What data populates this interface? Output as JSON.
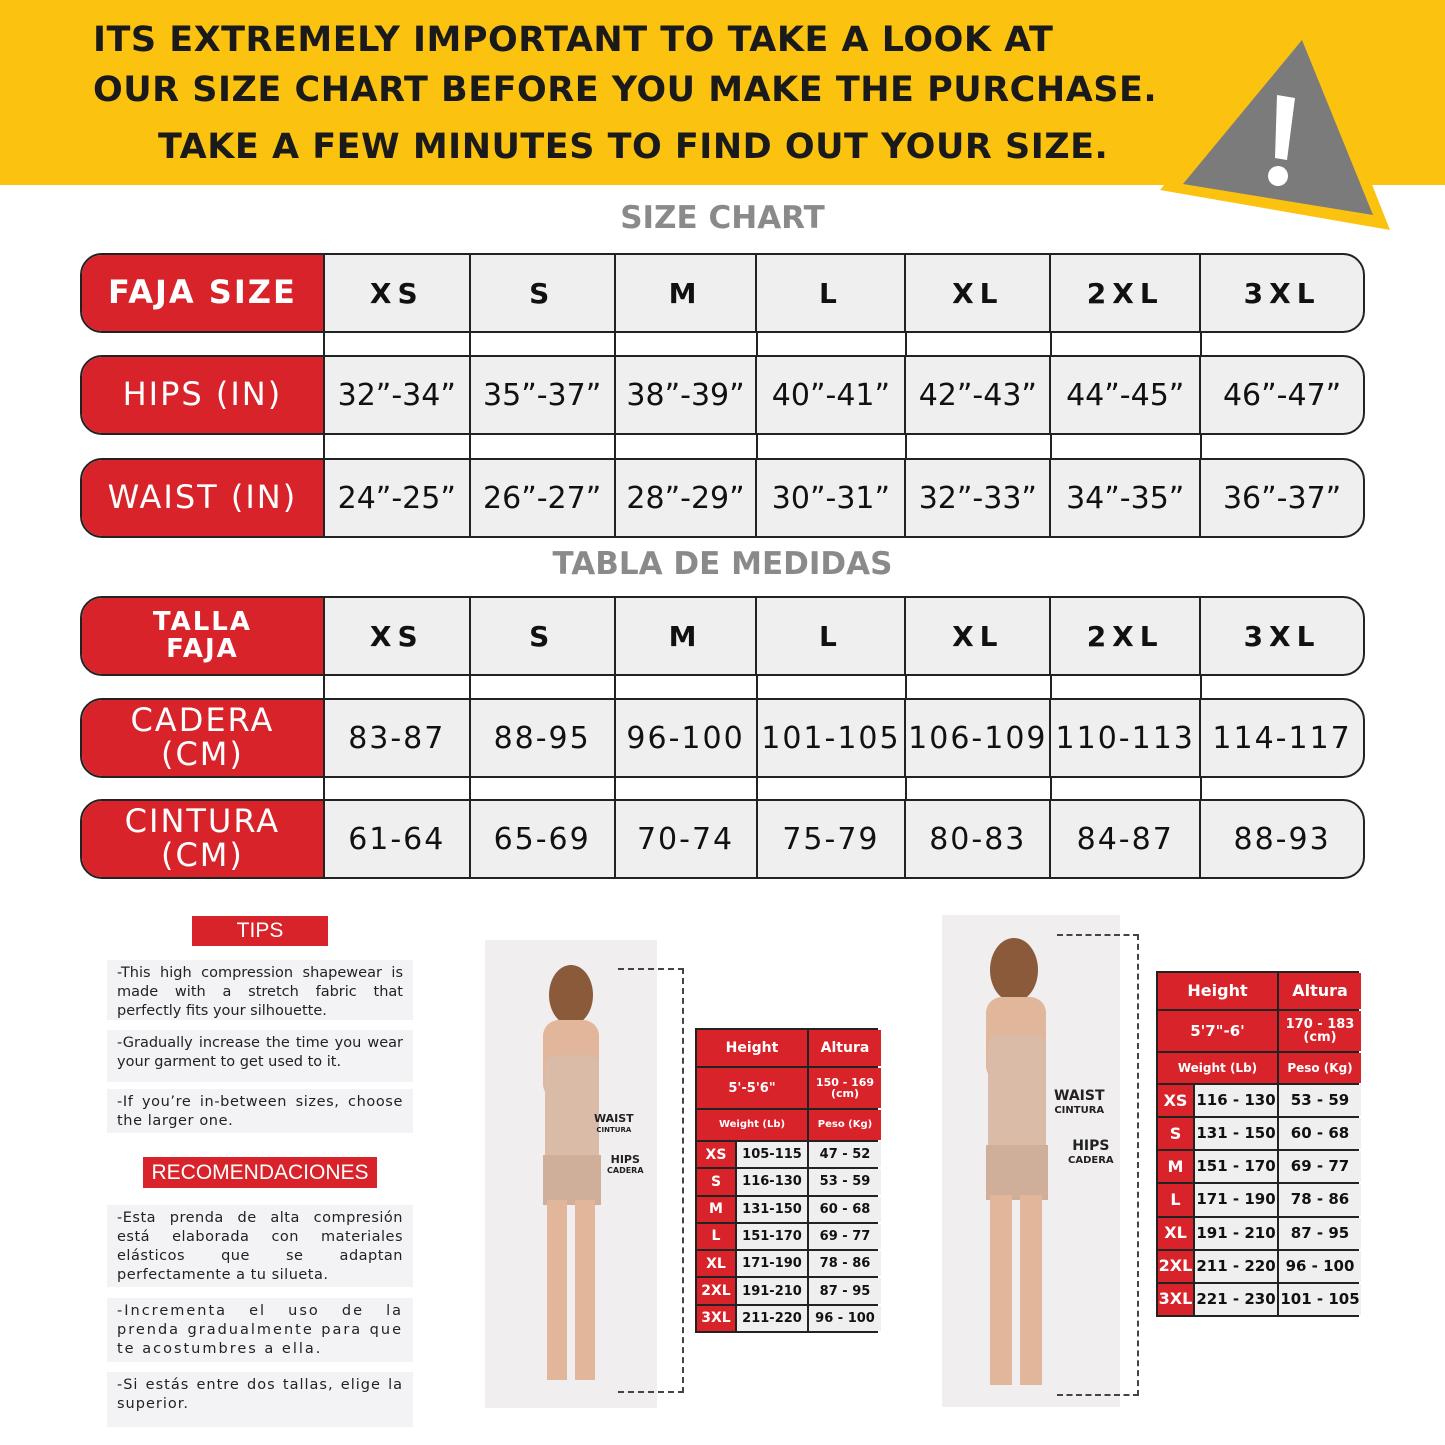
{
  "banner": {
    "line1": "ITS EXTREMELY IMPORTANT TO TAKE A LOOK AT",
    "line2": "OUR SIZE CHART BEFORE YOU MAKE THE PURCHASE.",
    "line3": "TAKE A FEW MINUTES TO FIND OUT YOUR SIZE.",
    "icon": "warning-triangle-icon",
    "color": "#FBC20F"
  },
  "colors": {
    "accent": "#D9232A",
    "cell": "#efefef",
    "title": "#8a8a8a"
  },
  "size_chart": {
    "title": "SIZE CHART",
    "rows": [
      {
        "label": "FAJA SIZE",
        "values": [
          "XS",
          "S",
          "M",
          "L",
          "XL",
          "2XL",
          "3XL"
        ]
      },
      {
        "label": "HIPS (IN)",
        "values": [
          "32”-34”",
          "35”-37”",
          "38”-39”",
          "40”-41”",
          "42”-43”",
          "44”-45”",
          "46”-47”"
        ]
      },
      {
        "label": "WAIST (IN)",
        "values": [
          "24”-25”",
          "26”-27”",
          "28”-29”",
          "30”-31”",
          "32”-33”",
          "34”-35”",
          "36”-37”"
        ]
      }
    ]
  },
  "tabla": {
    "title": "TABLA DE MEDIDAS",
    "rows": [
      {
        "label": "TALLA FAJA",
        "values": [
          "XS",
          "S",
          "M",
          "L",
          "XL",
          "2XL",
          "3XL"
        ]
      },
      {
        "label": "CADERA (CM)",
        "values": [
          "83-87",
          "88-95",
          "96-100",
          "101-105",
          "106-109",
          "110-113",
          "114-117"
        ]
      },
      {
        "label": "CINTURA (CM)",
        "values": [
          "61-64",
          "65-69",
          "70-74",
          "75-79",
          "80-83",
          "84-87",
          "88-93"
        ]
      }
    ]
  },
  "tips": {
    "title": "TIPS",
    "items": [
      "-This high compression shapewear is made with a stretch fabric that perfectly fits your silhouette.",
      "-Gradually increase the time you wear your garment to get used to it.",
      "-If you’re in-between sizes, choose the larger one."
    ]
  },
  "recomendaciones": {
    "title": "RECOMENDACIONES",
    "items": [
      "-Esta prenda de alta compresión está elaborada con materiales elásticos que se adaptan perfectamente a tu silueta.",
      "-Incrementa el uso de la prenda gradualmente para que te acostumbres a ella.",
      "-Si estás entre dos tallas, elige la superior."
    ]
  },
  "annotations": {
    "waist": "WAIST",
    "cintura": "CINTURA",
    "hips": "HIPS",
    "cadera": "CADERA"
  },
  "weight_tables": [
    {
      "height_label": "Height",
      "altura_label": "Altura",
      "height": "5'-5'6\"",
      "altura": "150 - 169 (cm)",
      "weight_label": "Weight (Lb)",
      "peso_label": "Peso (Kg)",
      "rows": [
        [
          "XS",
          "105-115",
          "47 - 52"
        ],
        [
          "S",
          "116-130",
          "53 - 59"
        ],
        [
          "M",
          "131-150",
          "60 - 68"
        ],
        [
          "L",
          "151-170",
          "69 - 77"
        ],
        [
          "XL",
          "171-190",
          "78 - 86"
        ],
        [
          "2XL",
          "191-210",
          "87 - 95"
        ],
        [
          "3XL",
          "211-220",
          "96 - 100"
        ]
      ]
    },
    {
      "height_label": "Height",
      "altura_label": "Altura",
      "height": "5'7\"-6'",
      "altura": "170 - 183 (cm)",
      "weight_label": "Weight (Lb)",
      "peso_label": "Peso (Kg)",
      "rows": [
        [
          "XS",
          "116 - 130",
          "53 - 59"
        ],
        [
          "S",
          "131 - 150",
          "60 - 68"
        ],
        [
          "M",
          "151 - 170",
          "69 - 77"
        ],
        [
          "L",
          "171 - 190",
          "78 - 86"
        ],
        [
          "XL",
          "191 - 210",
          "87 - 95"
        ],
        [
          "2XL",
          "211 - 220",
          "96 - 100"
        ],
        [
          "3XL",
          "221 - 230",
          "101 - 105"
        ]
      ]
    }
  ]
}
